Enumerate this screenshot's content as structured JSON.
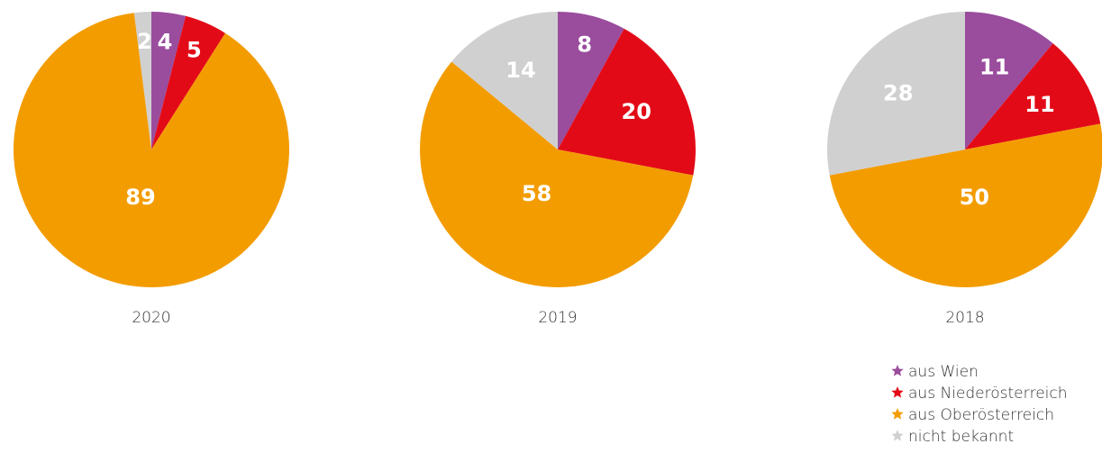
{
  "legend": {
    "labels": [
      "aus Wien",
      "aus Niederösterreich",
      "aus Oberösterreich",
      "nicht bekannt"
    ],
    "colors": [
      "#9a4c9d",
      "#e30a17",
      "#f39c00",
      "#d0d0d0"
    ]
  },
  "chart_data": [
    {
      "type": "pie",
      "title": "2020",
      "values": [
        4,
        5,
        89,
        2
      ]
    },
    {
      "type": "pie",
      "title": "2019",
      "values": [
        8,
        20,
        58,
        14
      ]
    },
    {
      "type": "pie",
      "title": "2018",
      "values": [
        11,
        11,
        50,
        28
      ]
    }
  ]
}
